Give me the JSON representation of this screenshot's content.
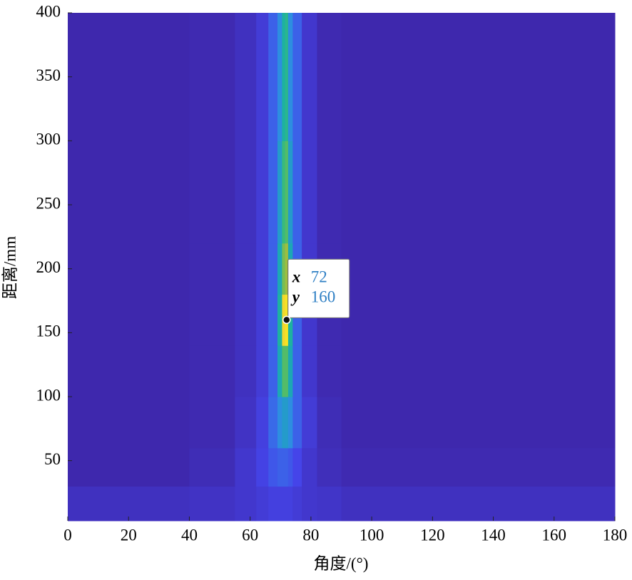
{
  "chart_data": {
    "type": "heatmap",
    "xlabel": "角度/(°)",
    "ylabel": "距离/mm",
    "xbins": [
      0,
      40,
      55,
      62,
      66,
      69,
      70.5,
      71.5,
      72.5,
      74,
      77,
      82,
      90,
      180
    ],
    "ybins": [
      3,
      30,
      60,
      100,
      140,
      180,
      220,
      300,
      400
    ],
    "z": [
      [
        0.05,
        0.06,
        0.08,
        0.1,
        0.12,
        0.12,
        0.12,
        0.12,
        0.12,
        0.1,
        0.08,
        0.07,
        0.05
      ],
      [
        0.01,
        0.03,
        0.08,
        0.13,
        0.18,
        0.2,
        0.2,
        0.2,
        0.18,
        0.14,
        0.08,
        0.04,
        0.02
      ],
      [
        0.01,
        0.02,
        0.06,
        0.12,
        0.22,
        0.3,
        0.35,
        0.35,
        0.3,
        0.2,
        0.1,
        0.03,
        0.01
      ],
      [
        0.01,
        0.02,
        0.05,
        0.1,
        0.2,
        0.4,
        0.6,
        0.6,
        0.4,
        0.2,
        0.08,
        0.02,
        0.01
      ],
      [
        0.01,
        0.02,
        0.05,
        0.1,
        0.2,
        0.45,
        0.85,
        0.9,
        0.45,
        0.2,
        0.08,
        0.02,
        0.01
      ],
      [
        0.01,
        0.02,
        0.05,
        0.1,
        0.2,
        0.4,
        0.65,
        0.7,
        0.4,
        0.2,
        0.08,
        0.02,
        0.01
      ],
      [
        0.01,
        0.02,
        0.05,
        0.1,
        0.2,
        0.35,
        0.55,
        0.6,
        0.35,
        0.2,
        0.08,
        0.02,
        0.01
      ],
      [
        0.01,
        0.02,
        0.05,
        0.1,
        0.2,
        0.3,
        0.45,
        0.5,
        0.3,
        0.2,
        0.08,
        0.02,
        0.01
      ]
    ],
    "colormap": [
      "#3e26a8",
      "#4545ea",
      "#2f8ae6",
      "#17b0a8",
      "#3ebc74",
      "#a8be3a",
      "#f5d82d",
      "#f9fb0e"
    ],
    "xlim": [
      0,
      180
    ],
    "xticks": [
      0,
      20,
      40,
      60,
      80,
      100,
      120,
      140,
      160,
      180
    ],
    "ylim": [
      3,
      400
    ],
    "yticks": [
      50,
      100,
      150,
      200,
      250,
      300,
      350,
      400
    ],
    "datatip": {
      "labels": [
        "x",
        "y"
      ],
      "x": 72,
      "y": 160
    }
  }
}
